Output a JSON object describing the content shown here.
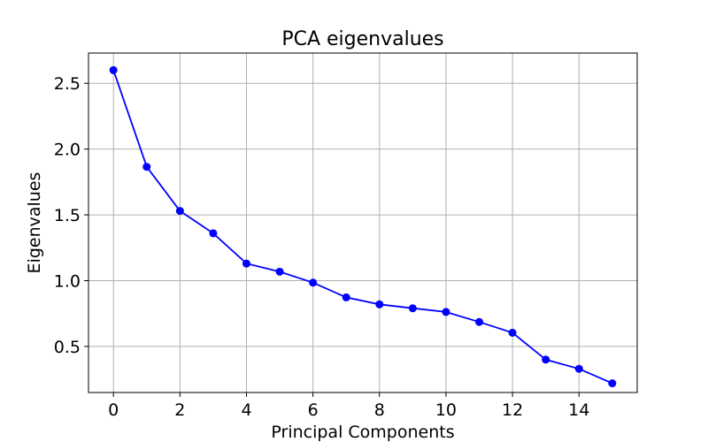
{
  "chart_data": {
    "type": "line",
    "title": "PCA eigenvalues",
    "xlabel": "Principal Components",
    "ylabel": "Eigenvalues",
    "x": [
      0,
      1,
      2,
      3,
      4,
      5,
      6,
      7,
      8,
      9,
      10,
      11,
      12,
      13,
      14,
      15
    ],
    "series": [
      {
        "values": [
          2.6,
          1.865,
          1.53,
          1.36,
          1.13,
          1.068,
          0.985,
          0.873,
          0.82,
          0.79,
          0.762,
          0.686,
          0.604,
          0.4,
          0.33,
          0.22
        ]
      }
    ],
    "xlim": [
      -0.75,
      15.75
    ],
    "ylim": [
      0.15,
      2.73
    ],
    "xticks": [
      "0",
      "2",
      "4",
      "6",
      "8",
      "10",
      "12",
      "14"
    ],
    "yticks": [
      "0.5",
      "1.0",
      "1.5",
      "2.0",
      "2.5"
    ],
    "grid": true,
    "colors": {
      "line": "#0000ff",
      "grid": "#b0b0b0",
      "axes": "#000000"
    }
  }
}
